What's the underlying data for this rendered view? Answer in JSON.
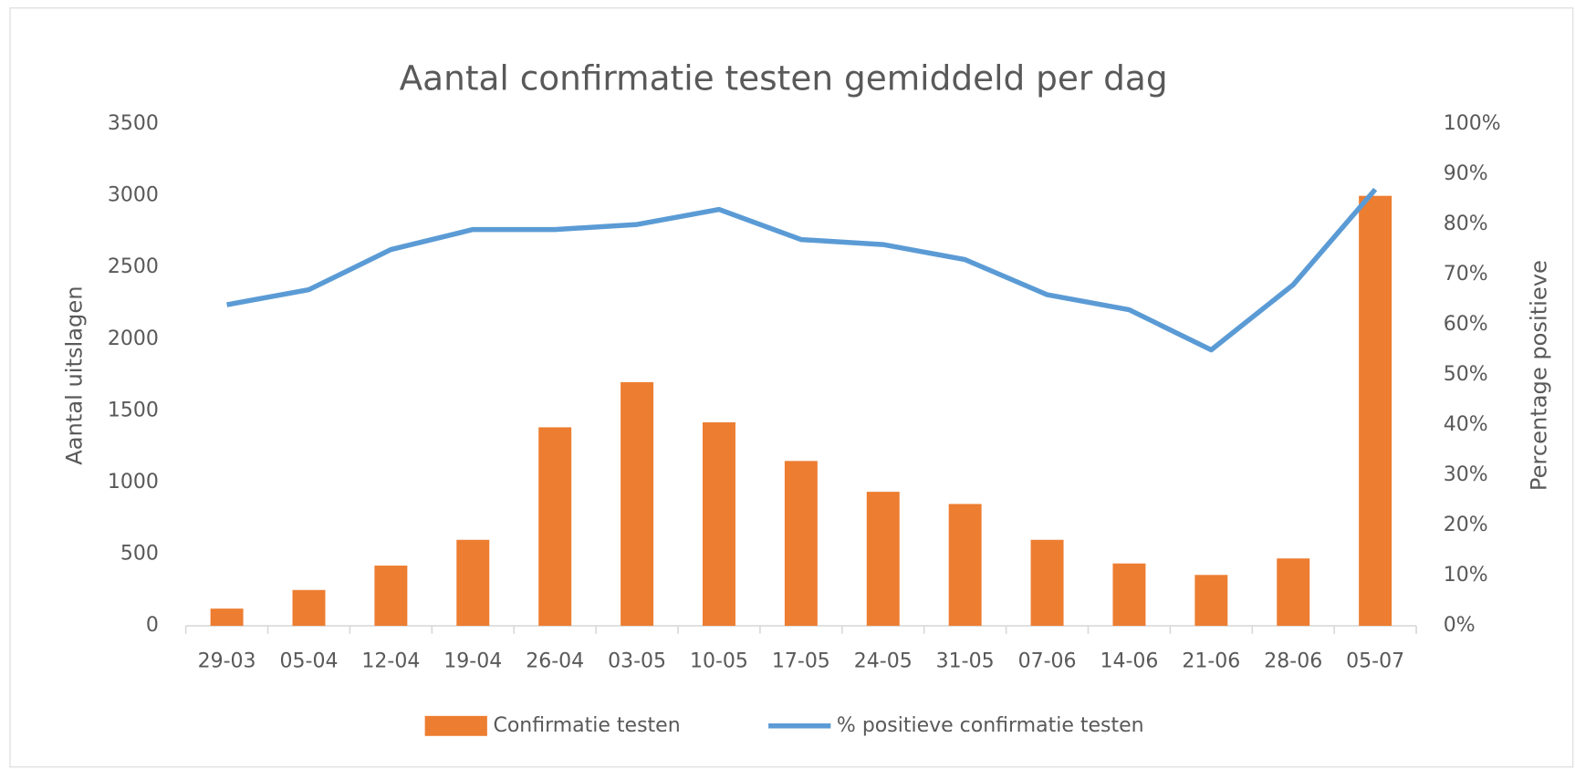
{
  "chart_data": {
    "type": "bar-line",
    "title": "Aantal confirmatie testen gemiddeld per dag",
    "ylabel": "Aantal uitslagen",
    "y2label": "Percentage positieve",
    "categories": [
      "29-03",
      "05-04",
      "12-04",
      "19-04",
      "26-04",
      "03-05",
      "10-05",
      "17-05",
      "24-05",
      "31-05",
      "07-06",
      "14-06",
      "21-06",
      "28-06",
      "05-07"
    ],
    "series": [
      {
        "name": "Confirmatie testen",
        "type": "bar",
        "color": "#ed7d31",
        "values": [
          120,
          250,
          420,
          600,
          1385,
          1700,
          1420,
          1150,
          935,
          850,
          600,
          435,
          355,
          470,
          3000
        ]
      },
      {
        "name": "% positieve confirmatie testen",
        "type": "line",
        "axis": "y2",
        "color": "#5b9bd5",
        "values": [
          64,
          67,
          75,
          79,
          79,
          80,
          83,
          77,
          76,
          73,
          66,
          63,
          55,
          68,
          87
        ]
      }
    ],
    "ylim": [
      0,
      3500
    ],
    "yticks": [
      0,
      500,
      1000,
      1500,
      2000,
      2500,
      3000,
      3500
    ],
    "y2lim": [
      0,
      100
    ],
    "y2ticks": [
      {
        "value": 0,
        "label": "0%"
      },
      {
        "value": 10,
        "label": "10%"
      },
      {
        "value": 20,
        "label": "20%"
      },
      {
        "value": 30,
        "label": "30%"
      },
      {
        "value": 40,
        "label": "40%"
      },
      {
        "value": 50,
        "label": "50%"
      },
      {
        "value": 60,
        "label": "60%"
      },
      {
        "value": 70,
        "label": "70%"
      },
      {
        "value": 80,
        "label": "80%"
      },
      {
        "value": 90,
        "label": "90%"
      },
      {
        "value": 100,
        "label": "100%"
      }
    ],
    "grid": false,
    "legend": "bottom"
  }
}
